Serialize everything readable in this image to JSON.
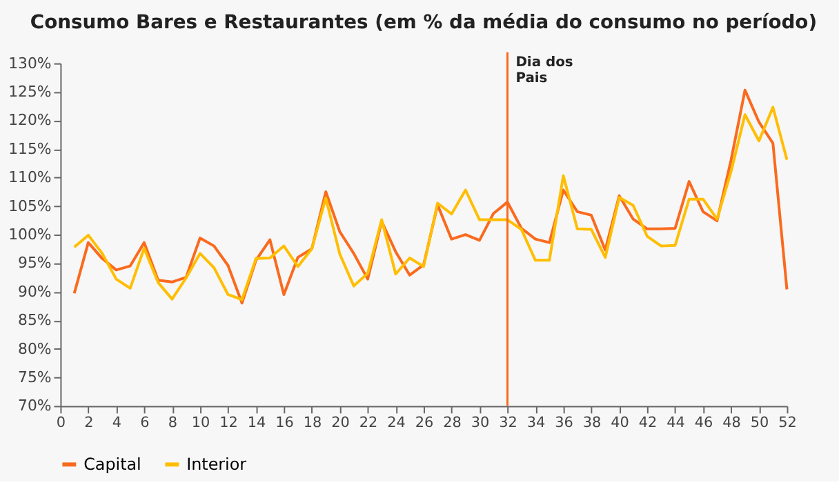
{
  "chart_data": {
    "type": "line",
    "title": "Consumo Bares e Restaurantes (em % da média do consumo no período)",
    "x": [
      1,
      2,
      3,
      4,
      5,
      6,
      7,
      8,
      9,
      10,
      11,
      12,
      13,
      14,
      15,
      16,
      17,
      18,
      19,
      20,
      21,
      22,
      23,
      24,
      25,
      26,
      27,
      28,
      29,
      30,
      31,
      32,
      33,
      34,
      35,
      36,
      37,
      38,
      39,
      40,
      41,
      42,
      43,
      44,
      45,
      46,
      47,
      48,
      49,
      50,
      51,
      52
    ],
    "series": [
      {
        "name": "Capital",
        "color": "#fa6a1e",
        "values": [
          89.7,
          98.6,
          95.8,
          93.8,
          94.5,
          98.6,
          92,
          91.7,
          92.5,
          99.4,
          98,
          94.6,
          88,
          95.5,
          99.1,
          89.5,
          96,
          97.5,
          107.5,
          100.5,
          96.7,
          92.2,
          102.3,
          97,
          92.9,
          94.7,
          105.2,
          99.2,
          100,
          99,
          103.7,
          105.7,
          101.1,
          99.2,
          98.6,
          107.8,
          104,
          103.4,
          97.3,
          106.8,
          102.7,
          101,
          101,
          101.1,
          109.3,
          104,
          102.4,
          113,
          125.3,
          119.7,
          116,
          90.4
        ]
      },
      {
        "name": "Interior",
        "color": "#ffbe00",
        "values": [
          97.8,
          99.9,
          96.7,
          92.2,
          90.6,
          97.6,
          91.6,
          88.7,
          92.4,
          96.7,
          94.2,
          89.5,
          88.6,
          95.8,
          95.9,
          98,
          94.4,
          97.5,
          106.4,
          96.6,
          91,
          93.2,
          102.6,
          93.1,
          95.9,
          94.4,
          105.5,
          103.6,
          107.8,
          102.6,
          102.6,
          102.6,
          100.9,
          95.5,
          95.5,
          110.3,
          101,
          100.9,
          96,
          106.5,
          105.1,
          99.7,
          98,
          98.1,
          106.2,
          106.2,
          102.7,
          111,
          121,
          116.4,
          122.3,
          113.1
        ]
      }
    ],
    "xlim": [
      0,
      52
    ],
    "xticks": [
      0,
      2,
      4,
      6,
      8,
      10,
      12,
      14,
      16,
      18,
      20,
      22,
      24,
      26,
      28,
      30,
      32,
      34,
      36,
      38,
      40,
      42,
      44,
      46,
      48,
      50,
      52
    ],
    "ylim": [
      70,
      130
    ],
    "yticks": [
      {
        "value": 70,
        "label": "70%"
      },
      {
        "value": 75,
        "label": "75%"
      },
      {
        "value": 80,
        "label": "80%"
      },
      {
        "value": 85,
        "label": "85%"
      },
      {
        "value": 90,
        "label": "90%"
      },
      {
        "value": 95,
        "label": "95%"
      },
      {
        "value": 100,
        "label": "100%"
      },
      {
        "value": 105,
        "label": "105%"
      },
      {
        "value": 110,
        "label": "110%"
      },
      {
        "value": 115,
        "label": "115%"
      },
      {
        "value": 120,
        "label": "120%"
      },
      {
        "value": 125,
        "label": "125%"
      },
      {
        "value": 130,
        "label": "130%"
      }
    ],
    "ref_lines": [
      {
        "axis": "x",
        "value": 32,
        "label": "Dia dos\nPais",
        "color": "#fa6a1e"
      }
    ],
    "legend": "bottom",
    "grid": false,
    "marker": "none",
    "line_style": "solid"
  }
}
